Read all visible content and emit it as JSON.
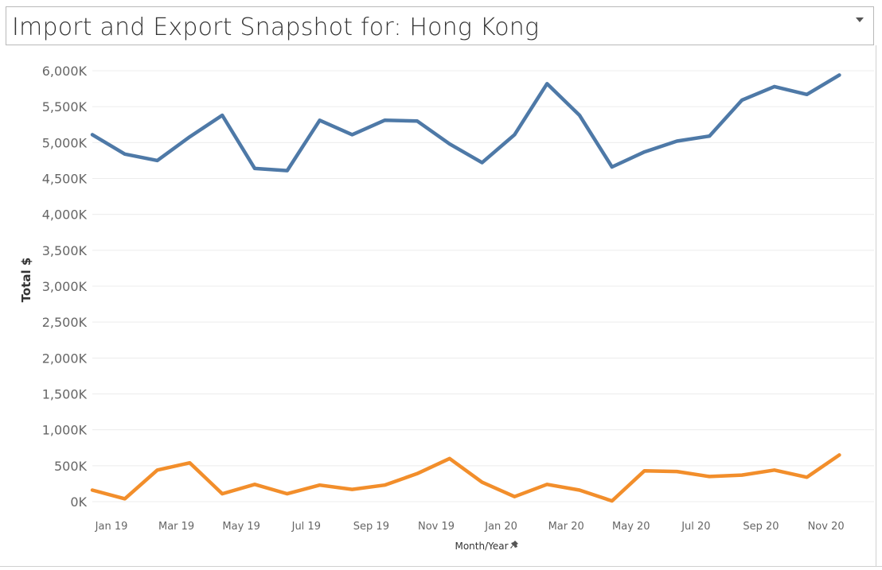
{
  "header": {
    "title": "Import and Export Snapshot for: Hong Kong"
  },
  "colors": {
    "series1": "#4e79a7",
    "series2": "#f28e2b",
    "grid": "#ececec",
    "tick_text": "#666666"
  },
  "chart_data": {
    "type": "line",
    "xlabel": "Month/Year",
    "ylabel": "Total $",
    "ylim": [
      0,
      6200
    ],
    "grid": true,
    "y_ticks": [
      {
        "value": 0,
        "label": "0K"
      },
      {
        "value": 500,
        "label": "500K"
      },
      {
        "value": 1000,
        "label": "1,000K"
      },
      {
        "value": 1500,
        "label": "1,500K"
      },
      {
        "value": 2000,
        "label": "2,000K"
      },
      {
        "value": 2500,
        "label": "2,500K"
      },
      {
        "value": 3000,
        "label": "3,000K"
      },
      {
        "value": 3500,
        "label": "3,500K"
      },
      {
        "value": 4000,
        "label": "4,000K"
      },
      {
        "value": 4500,
        "label": "4,500K"
      },
      {
        "value": 5000,
        "label": "5,000K"
      },
      {
        "value": 5500,
        "label": "5,500K"
      },
      {
        "value": 6000,
        "label": "6,000K"
      }
    ],
    "x": [
      "Jan 19",
      "Feb 19",
      "Mar 19",
      "Apr 19",
      "May 19",
      "Jun 19",
      "Jul 19",
      "Aug 19",
      "Sep 19",
      "Oct 19",
      "Nov 19",
      "Dec 19",
      "Jan 20",
      "Feb 20",
      "Mar 20",
      "Apr 20",
      "May 20",
      "Jun 20",
      "Jul 20",
      "Aug 20",
      "Sep 20",
      "Oct 20",
      "Nov 20",
      "Dec 20"
    ],
    "x_tick_labels": [
      {
        "index": 0,
        "label": "Jan 19"
      },
      {
        "index": 2,
        "label": "Mar 19"
      },
      {
        "index": 4,
        "label": "May 19"
      },
      {
        "index": 6,
        "label": "Jul 19"
      },
      {
        "index": 8,
        "label": "Sep 19"
      },
      {
        "index": 10,
        "label": "Nov 19"
      },
      {
        "index": 12,
        "label": "Jan 20"
      },
      {
        "index": 14,
        "label": "Mar 20"
      },
      {
        "index": 16,
        "label": "May 20"
      },
      {
        "index": 18,
        "label": "Jul 20"
      },
      {
        "index": 20,
        "label": "Sep 20"
      },
      {
        "index": 22,
        "label": "Nov 20"
      }
    ],
    "series": [
      {
        "values": [
          5110,
          4840,
          4750,
          5080,
          5380,
          4640,
          4610,
          5310,
          5110,
          5310,
          5300,
          4980,
          4720,
          5110,
          5820,
          5380,
          4660,
          4870,
          5020,
          5090,
          5590,
          5780,
          5670,
          5940
        ]
      },
      {
        "values": [
          160,
          40,
          440,
          540,
          110,
          240,
          110,
          230,
          170,
          230,
          390,
          600,
          270,
          70,
          240,
          160,
          10,
          430,
          420,
          350,
          370,
          440,
          340,
          650
        ]
      }
    ]
  }
}
